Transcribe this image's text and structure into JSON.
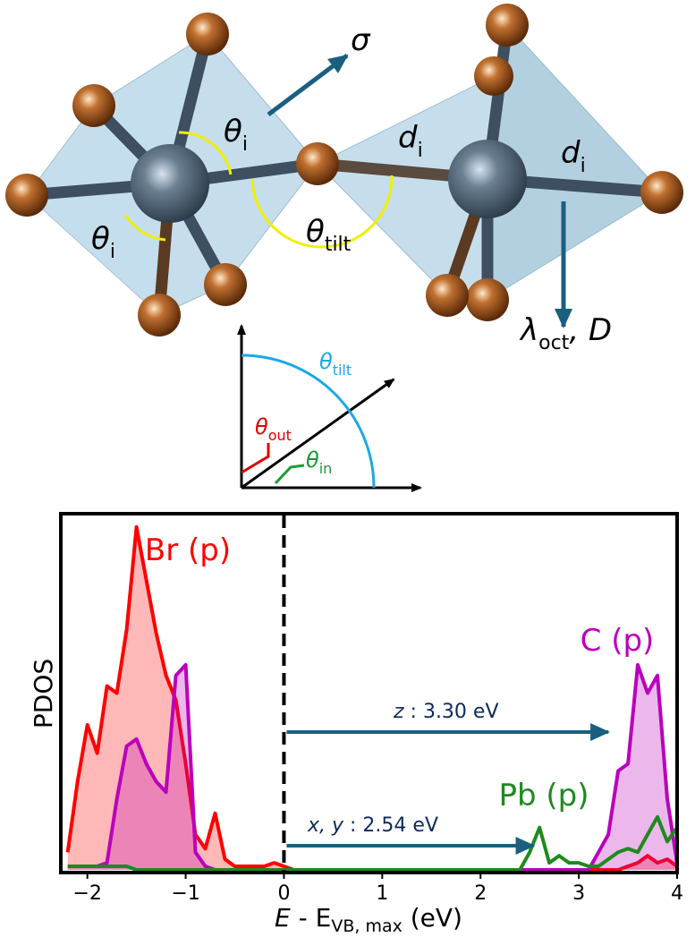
{
  "diagram": {
    "labels": [
      {
        "symbol": "σ"
      },
      {
        "symbol": "θ",
        "sub": "i"
      },
      {
        "symbol": "θ",
        "sub": "i"
      },
      {
        "symbol": "θ",
        "sub": "tilt"
      },
      {
        "symbol": "d",
        "sub": "i"
      },
      {
        "symbol": "d",
        "sub": "i"
      },
      {
        "symbol": "λ",
        "sub": "oct",
        "rest": ", D"
      }
    ],
    "inset_labels": [
      {
        "symbol": "θ",
        "sub": "tilt"
      },
      {
        "symbol": "θ",
        "sub": "out"
      },
      {
        "symbol": "θ",
        "sub": "in"
      }
    ]
  },
  "chart_data": {
    "type": "line",
    "x_label": {
      "main": "E",
      "middle": " - E",
      "sub": "VB, max",
      "unit": " (eV)"
    },
    "y_label": "PDOS",
    "x": [
      -2.2,
      -2.1,
      -2.0,
      -1.9,
      -1.8,
      -1.7,
      -1.6,
      -1.5,
      -1.4,
      -1.3,
      -1.2,
      -1.1,
      -1.0,
      -0.9,
      -0.8,
      -0.7,
      -0.6,
      -0.5,
      -0.4,
      -0.3,
      -0.2,
      -0.1,
      0.0,
      0.1,
      0.2,
      0.3,
      0.4,
      0.5,
      0.6,
      0.7,
      0.8,
      0.9,
      1.0,
      1.1,
      1.2,
      1.3,
      1.4,
      1.5,
      1.6,
      1.7,
      1.8,
      1.9,
      2.0,
      2.1,
      2.2,
      2.3,
      2.4,
      2.5,
      2.6,
      2.7,
      2.8,
      2.9,
      3.0,
      3.1,
      3.2,
      3.3,
      3.4,
      3.5,
      3.6,
      3.7,
      3.8,
      3.9,
      4.0
    ],
    "series": [
      {
        "name": "Br (p)",
        "color": "#ff0000",
        "fill": true,
        "values": [
          0.05,
          0.25,
          0.41,
          0.33,
          0.52,
          0.5,
          0.68,
          0.97,
          0.82,
          0.67,
          0.55,
          0.48,
          0.3,
          0.1,
          0.06,
          0.16,
          0.03,
          0.01,
          0.01,
          0.01,
          0.01,
          0.02,
          0.01,
          0,
          0,
          0,
          0,
          0,
          0,
          0,
          0,
          0,
          0,
          0,
          0,
          0,
          0,
          0,
          0,
          0,
          0,
          0,
          0,
          0,
          0,
          0,
          0,
          0,
          0,
          0,
          0,
          0,
          0,
          0,
          0,
          0,
          0,
          0.01,
          0.02,
          0.04,
          0.02,
          0.03,
          0.01
        ]
      },
      {
        "name": "C (p)",
        "color": "#bb00bb",
        "fill": true,
        "values": [
          0.01,
          0.01,
          0.01,
          0.01,
          0.02,
          0.2,
          0.35,
          0.37,
          0.3,
          0.25,
          0.22,
          0.55,
          0.58,
          0.05,
          0.01,
          0,
          0,
          0,
          0,
          0,
          0,
          0,
          0,
          0,
          0,
          0,
          0,
          0,
          0,
          0,
          0,
          0,
          0,
          0,
          0,
          0,
          0,
          0,
          0,
          0,
          0,
          0,
          0,
          0,
          0,
          0,
          0,
          0,
          0,
          0,
          0,
          0,
          0,
          0,
          0.05,
          0.1,
          0.28,
          0.3,
          0.58,
          0.5,
          0.55,
          0.2,
          0.02
        ]
      },
      {
        "name": "Pb (p)",
        "color": "#1e8a1e",
        "fill": false,
        "values": [
          0.01,
          0.01,
          0.01,
          0.01,
          0.01,
          0.01,
          0.01,
          0,
          0,
          0,
          0,
          0,
          0,
          0,
          0,
          0,
          0,
          0,
          0,
          0,
          0,
          0,
          0,
          0,
          0,
          0,
          0,
          0,
          0,
          0,
          0,
          0,
          0,
          0,
          0,
          0,
          0,
          0,
          0,
          0,
          0,
          0,
          0,
          0,
          0,
          0,
          0,
          0.05,
          0.12,
          0.02,
          0.04,
          0.02,
          0.02,
          0.01,
          0.01,
          0.03,
          0.05,
          0.06,
          0.05,
          0.1,
          0.15,
          0.08,
          0.12
        ]
      }
    ],
    "annotations": [
      {
        "label": "z",
        "text": " : 3.30 eV",
        "value": 3.3
      },
      {
        "label": "x, y",
        "text": " : 2.54 eV",
        "value": 2.54
      }
    ],
    "xlim": [
      -2.27,
      4
    ],
    "ylim": [
      0,
      1
    ],
    "xticks": [
      {
        "value": -2,
        "label": "−2"
      },
      {
        "value": -1,
        "label": "−1"
      },
      0,
      1,
      2,
      3,
      4
    ]
  }
}
